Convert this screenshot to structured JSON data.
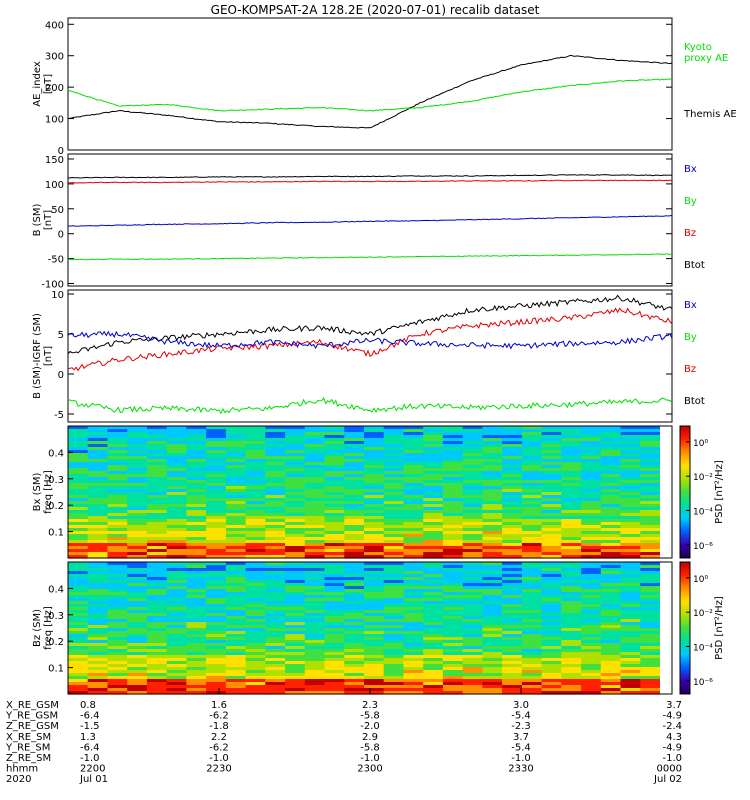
{
  "title": "GEO-KOMPSAT-2A 128.2E (2020-07-01) recalib dataset",
  "colors": {
    "black": "#000000",
    "red": "#e00000",
    "green": "#00e000",
    "blue": "#0000c8"
  },
  "panels": [
    {
      "id": "ae",
      "ylabel": [
        "AE_index",
        "[nT]"
      ],
      "ylim": [
        0,
        420
      ],
      "yticks": [
        0,
        100,
        200,
        300,
        400
      ],
      "legend": [
        {
          "text": "Kyoto",
          "color": "#00e000"
        },
        {
          "text": "proxy AE",
          "color": "#00e000"
        },
        {
          "text": "Themis AE",
          "color": "#000000"
        }
      ]
    },
    {
      "id": "bsm",
      "ylabel": [
        "B (SM)",
        "[nT]"
      ],
      "ylim": [
        -105,
        160
      ],
      "yticks": [
        -100,
        -50,
        0,
        50,
        100,
        150
      ],
      "legend": [
        {
          "text": "Bx",
          "color": "#0000c8"
        },
        {
          "text": "By",
          "color": "#00e000"
        },
        {
          "text": "Bz",
          "color": "#e00000"
        },
        {
          "text": "Btot",
          "color": "#000000"
        }
      ]
    },
    {
      "id": "bigrf",
      "ylabel": [
        "B (SM)-IGRF (SM)",
        "[nT]"
      ],
      "ylim": [
        -6,
        10.5
      ],
      "yticks": [
        -5,
        0,
        5,
        10
      ],
      "legend": [
        {
          "text": "Bx",
          "color": "#0000c8"
        },
        {
          "text": "By",
          "color": "#00e000"
        },
        {
          "text": "Bz",
          "color": "#e00000"
        },
        {
          "text": "Btot",
          "color": "#000000"
        }
      ]
    },
    {
      "id": "spec_bx",
      "ylabel": [
        "Bx (SM)",
        "freq [Hz]"
      ],
      "ylim": [
        0,
        0.5
      ],
      "yticks": [
        0.1,
        0.2,
        0.3,
        0.4
      ],
      "cbar_label": "PSD [nT²/Hz]",
      "cbar_ticks": [
        "10⁰",
        "10⁻²",
        "10⁻⁴",
        "10⁻⁶"
      ]
    },
    {
      "id": "spec_bz",
      "ylabel": [
        "Bz (SM)",
        "freq [Hz]"
      ],
      "ylim": [
        0,
        0.5
      ],
      "yticks": [
        0.1,
        0.2,
        0.3,
        0.4
      ],
      "cbar_label": "PSD [nT²/Hz]",
      "cbar_ticks": [
        "10⁰",
        "10⁻²",
        "10⁻⁴",
        "10⁻⁶"
      ]
    }
  ],
  "chart_data": {
    "type": "line",
    "title": "GEO-KOMPSAT-2A 128.2E (2020-07-01) recalib dataset",
    "time_range": [
      "2020-07-01 22:00",
      "2020-07-02 00:00"
    ],
    "x_minutes": [
      0,
      10,
      20,
      30,
      40,
      50,
      60,
      70,
      80,
      90,
      100,
      110,
      120
    ],
    "series": {
      "ae": [
        {
          "name": "Themis AE",
          "color": "#000000",
          "values": [
            100,
            125,
            110,
            90,
            85,
            75,
            70,
            150,
            220,
            270,
            300,
            285,
            275
          ]
        },
        {
          "name": "Kyoto proxy AE",
          "color": "#00e000",
          "values": [
            190,
            140,
            145,
            125,
            130,
            135,
            125,
            135,
            155,
            185,
            205,
            220,
            225
          ]
        }
      ],
      "bsm": [
        {
          "name": "Btot",
          "color": "#000000",
          "values": [
            112,
            113,
            113,
            114,
            114,
            115,
            115,
            116,
            116,
            117,
            118,
            118,
            117
          ]
        },
        {
          "name": "Bz",
          "color": "#e00000",
          "values": [
            102,
            103,
            103,
            104,
            104,
            105,
            105,
            105,
            106,
            106,
            107,
            107,
            107
          ]
        },
        {
          "name": "Bx",
          "color": "#0000c8",
          "values": [
            15,
            17,
            19,
            20,
            22,
            23,
            25,
            26,
            28,
            30,
            32,
            34,
            36
          ]
        },
        {
          "name": "By",
          "color": "#00e000",
          "values": [
            -52,
            -51,
            -51,
            -50,
            -49,
            -48,
            -47,
            -46,
            -45,
            -44,
            -43,
            -42,
            -41
          ]
        }
      ],
      "bigrf": [
        {
          "name": "Btot",
          "color": "#000000",
          "values": [
            2.5,
            4,
            4.5,
            5,
            5.5,
            5.8,
            5,
            6.5,
            8,
            8.5,
            9,
            9.5,
            8
          ]
        },
        {
          "name": "Bz",
          "color": "#e00000",
          "values": [
            0.5,
            1.8,
            2.5,
            3.2,
            3.5,
            4,
            2.5,
            5,
            6,
            6.5,
            7,
            8,
            6.5
          ]
        },
        {
          "name": "Bx",
          "color": "#0000c8",
          "values": [
            4.8,
            5,
            4,
            3.5,
            4,
            3.5,
            4.2,
            3.8,
            3.6,
            3.5,
            3.8,
            4,
            4.8
          ]
        },
        {
          "name": "By",
          "color": "#00e000",
          "values": [
            -3.5,
            -4.5,
            -4.3,
            -4.6,
            -4.3,
            -3.2,
            -4.5,
            -4,
            -4.2,
            -4,
            -3.8,
            -3.5,
            -3.3
          ]
        }
      ]
    },
    "x_axis": {
      "rows": [
        {
          "label": "X_RE_GSM",
          "values": [
            "0.8",
            "1.6",
            "2.3",
            "3.0",
            "3.7"
          ]
        },
        {
          "label": "Y_RE_GSM",
          "values": [
            "-6.4",
            "-6.2",
            "-5.8",
            "-5.4",
            "-4.9"
          ]
        },
        {
          "label": "Z_RE_GSM",
          "values": [
            "-1.5",
            "-1.8",
            "-2.0",
            "-2.3",
            "-2.4"
          ]
        },
        {
          "label": "X_RE_SM",
          "values": [
            "1.3",
            "2.2",
            "2.9",
            "3.7",
            "4.3"
          ]
        },
        {
          "label": "Y_RE_SM",
          "values": [
            "-6.4",
            "-6.2",
            "-5.8",
            "-5.4",
            "-4.9"
          ]
        },
        {
          "label": "Z_RE_SM",
          "values": [
            "-1.0",
            "-1.0",
            "-1.0",
            "-1.0",
            "-1.0"
          ]
        },
        {
          "label": "hhmm",
          "values": [
            "2200",
            "2230",
            "2300",
            "2330",
            "0000"
          ]
        },
        {
          "label": "2020",
          "values": [
            "Jul 01",
            "",
            "",
            "",
            "Jul 02"
          ]
        }
      ]
    }
  }
}
